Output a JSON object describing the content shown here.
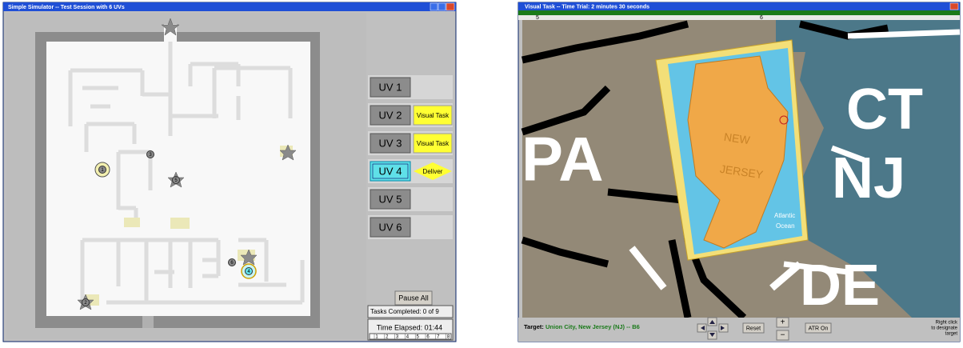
{
  "left_window": {
    "title": "Simple Simulator -- Test Session with 6 UVs",
    "uv_rows": [
      {
        "label": "UV 1"
      },
      {
        "label": "UV 2",
        "visual_task": "Visual Task"
      },
      {
        "label": "UV 3",
        "visual_task": "Visual Task"
      },
      {
        "label": "UV 4",
        "deliver": "Deliver",
        "selected": true
      },
      {
        "label": "UV 5"
      },
      {
        "label": "UV 6"
      }
    ],
    "uv_icons": [
      "1",
      "2",
      "3",
      "4",
      "5",
      "6"
    ],
    "pause_button": "Pause All",
    "tasks_completed": "Tasks Completed: 0 of 9",
    "time_elapsed": "Time Elapsed: 01:44",
    "timeline_ticks": [
      "1",
      "2",
      "3",
      "4",
      "5",
      "6",
      "7",
      "8"
    ]
  },
  "right_window": {
    "title": "Visual Task -- Time Trial: 2 minutes 30 seconds",
    "ruler_labels": [
      "5",
      "6"
    ],
    "map_labels": [
      "PA",
      "CT",
      "NJ",
      "DE"
    ],
    "inset_labels": [
      "NEW",
      "JERSEY",
      "Atlantic",
      "Ocean"
    ],
    "target_label": "Target:",
    "target_value": "Union City, New Jersey (NJ) -- B6",
    "reset_button": "Reset",
    "zoom_in": "+",
    "zoom_out": "−",
    "atr_button": "ATR On",
    "hint": [
      "Right click",
      "to designate",
      "target"
    ]
  }
}
